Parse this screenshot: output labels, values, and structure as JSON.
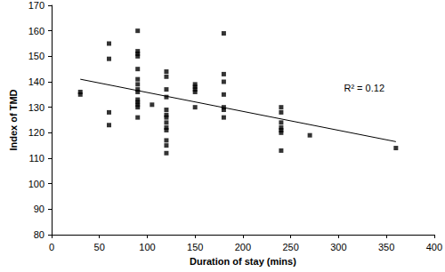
{
  "chart_data": {
    "type": "scatter",
    "x_label": "Duration of stay (mins)",
    "y_label": "Index of TMD",
    "x": [
      30,
      30,
      60,
      60,
      60,
      60,
      90,
      90,
      90,
      90,
      90,
      90,
      90,
      90,
      90,
      90,
      90,
      90,
      90,
      90,
      105,
      120,
      120,
      120,
      120,
      120,
      120,
      120,
      120,
      120,
      120,
      120,
      120,
      120,
      150,
      150,
      150,
      150,
      150,
      180,
      180,
      180,
      180,
      180,
      180,
      180,
      240,
      240,
      240,
      240,
      240,
      240,
      240,
      270,
      360
    ],
    "values": [
      136,
      135,
      155,
      149,
      128,
      123,
      160,
      152,
      151,
      150,
      145,
      141,
      139,
      137,
      136,
      133,
      132,
      131,
      130,
      126,
      131,
      144,
      142,
      137,
      134,
      129,
      127,
      126,
      124,
      122,
      121,
      117,
      115,
      112,
      139,
      138,
      137,
      136,
      130,
      159,
      143,
      140,
      135,
      130,
      129,
      126,
      130,
      128,
      124,
      122,
      121,
      120,
      113,
      119,
      114
    ],
    "color": "#000000",
    "marker": "square",
    "trendline": {
      "x": [
        30,
        360
      ],
      "values": [
        141,
        116.5
      ],
      "color": "#000000"
    },
    "annotations": [
      "R² = 0.12"
    ],
    "xlim": [
      0,
      400
    ],
    "xticks": [
      0,
      50,
      100,
      150,
      200,
      250,
      300,
      350,
      400
    ],
    "ylim": [
      80,
      170
    ],
    "yticks": [
      80,
      90,
      100,
      110,
      120,
      130,
      140,
      150,
      160,
      170
    ],
    "grid": false
  }
}
